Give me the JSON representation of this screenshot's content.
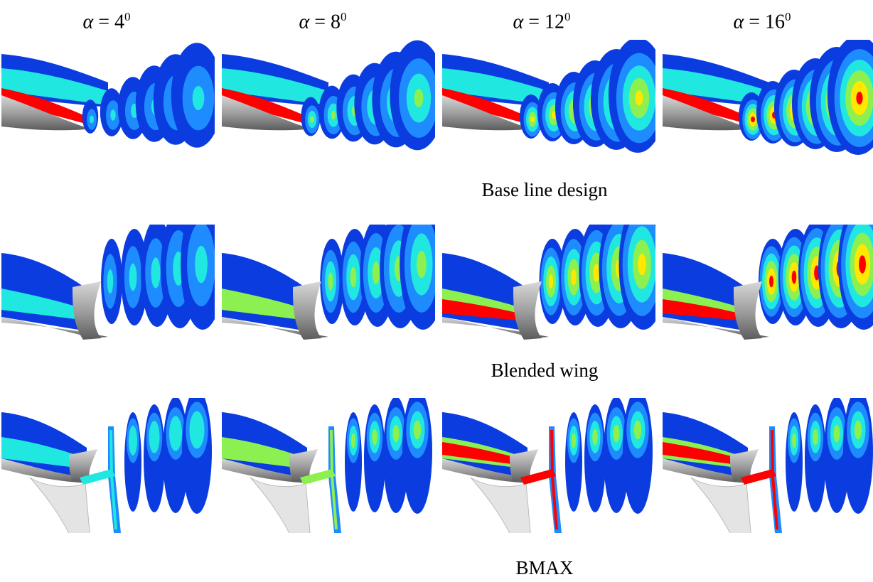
{
  "columns": [
    {
      "symbol": "α",
      "equals": "=",
      "value": "4",
      "superscript": "0"
    },
    {
      "symbol": "α",
      "equals": "=",
      "value": "8",
      "superscript": "0"
    },
    {
      "symbol": "α",
      "equals": "=",
      "value": "12",
      "superscript": "0"
    },
    {
      "symbol": "α",
      "equals": "=",
      "value": "16",
      "superscript": "0"
    }
  ],
  "rows": [
    {
      "caption": "Base line design",
      "geometry": "baseline"
    },
    {
      "caption": "Blended wing",
      "geometry": "blended-wing"
    },
    {
      "caption": "BMAX",
      "geometry": "bmax"
    }
  ],
  "colors": {
    "low": "#0a3ce0",
    "low_mid": "#1e8cff",
    "mid": "#20e8e0",
    "mid_high": "#8cf050",
    "high": "#ffe800",
    "peak": "#ff0000",
    "surface": "#9a9a9a",
    "surface_light": "#e4e4e4"
  },
  "intensity_by_angle_level": [
    0.15,
    0.45,
    0.75,
    1.0
  ]
}
